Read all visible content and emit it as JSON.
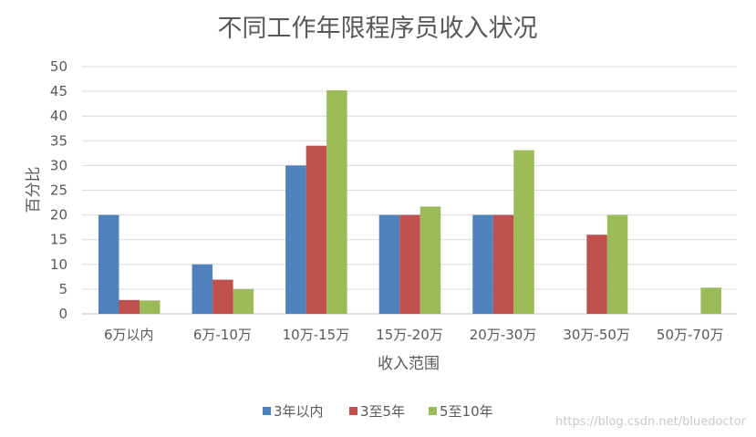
{
  "chart_data": {
    "type": "bar",
    "title": "不同工作年限程序员收入状况",
    "xlabel": "收入范围",
    "ylabel": "百分比",
    "ylim": [
      0,
      50
    ],
    "yticks": [
      0,
      5,
      10,
      15,
      20,
      25,
      30,
      35,
      40,
      45,
      50
    ],
    "grid": true,
    "legend_position": "bottom",
    "categories": [
      "6万以内",
      "6万-10万",
      "10万-15万",
      "15万-20万",
      "20万-30万",
      "30万-50万",
      "50万-70万"
    ],
    "series": [
      {
        "name": "3年以内",
        "color": "#4f81bd",
        "values": [
          20,
          10,
          30,
          20,
          20,
          0,
          0
        ]
      },
      {
        "name": "3至5年",
        "color": "#c0504d",
        "values": [
          2.8,
          6.9,
          34,
          20,
          20,
          16,
          0
        ]
      },
      {
        "name": "5至10年",
        "color": "#9bbb59",
        "values": [
          2.7,
          5,
          45.2,
          21.7,
          33.1,
          20,
          5.3
        ]
      }
    ]
  },
  "watermark": "https://blog.csdn.net/bluedoctor"
}
